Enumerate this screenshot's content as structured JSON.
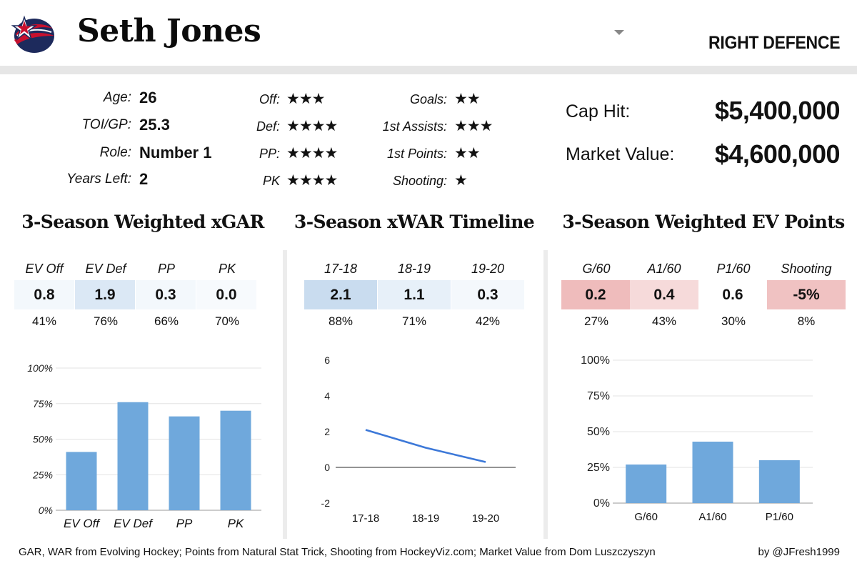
{
  "header": {
    "player_name": "Seth Jones",
    "position": "RIGHT DEFENCE",
    "team_logo_icon": "blue-jackets-logo-icon",
    "colors": {
      "navy": "#1d2a5c",
      "red": "#c8102e"
    }
  },
  "info": {
    "age_label": "Age:",
    "age": "26",
    "toi_label": "TOI/GP:",
    "toi": "25.3",
    "role_label": "Role:",
    "role": "Number 1",
    "years_label": "Years Left:",
    "years": "2"
  },
  "ratings": {
    "off_label": "Off:",
    "off": "★★★",
    "def_label": "Def:",
    "def": "★★★★",
    "pp_label": "PP:",
    "pp": "★★★★",
    "pk_label": "PK",
    "pk": "★★★★",
    "goals_label": "Goals:",
    "goals": "★★",
    "assists_label": "1st Assists:",
    "assists": "★★★",
    "points_label": "1st Points:",
    "points": "★★",
    "shooting_label": "Shooting:",
    "shooting": "★"
  },
  "contract": {
    "cap_hit_label": "Cap Hit:",
    "cap_hit": "$5,400,000",
    "market_label": "Market Value:",
    "market": "$4,600,000"
  },
  "sections": {
    "xgar_title": "3-Season Weighted xGAR",
    "xwar_title": "3-Season xWAR Timeline",
    "ev_title": "3-Season Weighted EV Points"
  },
  "xgar_table": {
    "headers": [
      "EV Off",
      "EV Def",
      "PP",
      "PK"
    ],
    "values": [
      "0.8",
      "1.9",
      "0.3",
      "0.0"
    ],
    "percentiles": [
      "41%",
      "76%",
      "66%",
      "70%"
    ],
    "cell_colors": [
      "#f3f8fc",
      "#dbe8f5",
      "#f3f8fc",
      "#f7fafd"
    ]
  },
  "xwar_table": {
    "headers": [
      "17-18",
      "18-19",
      "19-20"
    ],
    "values": [
      "2.1",
      "1.1",
      "0.3"
    ],
    "percentiles": [
      "88%",
      "71%",
      "42%"
    ],
    "cell_colors": [
      "#c9dcef",
      "#e7f0f9",
      "#f4f8fc"
    ]
  },
  "ev_table": {
    "headers": [
      "G/60",
      "A1/60",
      "P1/60",
      "Shooting"
    ],
    "values": [
      "0.2",
      "0.4",
      "0.6",
      "-5%"
    ],
    "percentiles": [
      "27%",
      "43%",
      "30%",
      "8%"
    ],
    "cell_colors": [
      "#efbcbc",
      "#f6dada",
      "#ffffff",
      "#f0c2c2"
    ]
  },
  "chart_data": [
    {
      "type": "bar",
      "categories": [
        "EV Off",
        "EV Def",
        "PP",
        "PK"
      ],
      "values": [
        41,
        76,
        66,
        70
      ],
      "ylim": [
        0,
        100
      ],
      "yticks": [
        "0%",
        "25%",
        "50%",
        "75%",
        "100%"
      ],
      "color": "#6fa8dc",
      "grid": true
    },
    {
      "type": "line",
      "categories": [
        "17-18",
        "18-19",
        "19-20"
      ],
      "values": [
        2.1,
        1.1,
        0.3
      ],
      "ylim": [
        -2,
        6
      ],
      "yticks": [
        "-2",
        "0",
        "2",
        "4",
        "6"
      ],
      "color": "#3c78d8",
      "grid": false
    },
    {
      "type": "bar",
      "categories": [
        "G/60",
        "A1/60",
        "P1/60"
      ],
      "values": [
        27,
        43,
        30
      ],
      "ylim": [
        0,
        100
      ],
      "yticks": [
        "0%",
        "25%",
        "50%",
        "75%",
        "100%"
      ],
      "color": "#6fa8dc",
      "grid": true
    }
  ],
  "footer": {
    "sources": "GAR, WAR from Evolving Hockey; Points from Natural Stat Trick, Shooting from HockeyViz.com; Market Value from Dom Luszczyszyn",
    "credit": "by @JFresh1999"
  }
}
